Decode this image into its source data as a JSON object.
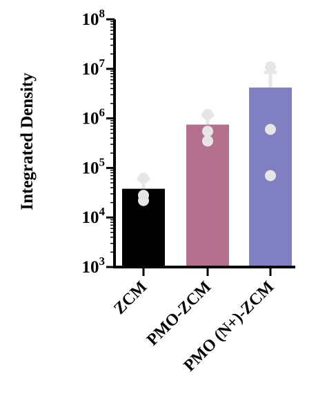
{
  "chart_data": {
    "type": "bar",
    "yscale": "log",
    "ylabel": "Integrated Density",
    "xlabel": "",
    "title": "",
    "ylim": [
      1000,
      100000000
    ],
    "y_ticks": [
      {
        "value": 1000,
        "base": "10",
        "exp": "3"
      },
      {
        "value": 10000,
        "base": "10",
        "exp": "4"
      },
      {
        "value": 100000,
        "base": "10",
        "exp": "5"
      },
      {
        "value": 1000000,
        "base": "10",
        "exp": "6"
      },
      {
        "value": 10000000,
        "base": "10",
        "exp": "7"
      },
      {
        "value": 100000000,
        "base": "10",
        "exp": "8"
      }
    ],
    "categories": [
      "ZCM",
      "PMO-ZCM",
      "PMO (N+)-ZCM"
    ],
    "values": [
      38000,
      750000,
      4200000
    ],
    "error_upper": [
      60000,
      1150000,
      8500000
    ],
    "points": [
      [
        62000,
        28000,
        22000
      ],
      [
        1200000,
        550000,
        350000
      ],
      [
        11000000,
        600000,
        70000
      ]
    ],
    "colors": [
      "#000000",
      "#b5708e",
      "#7f7fc1"
    ],
    "marker_color": "#e6e6e6",
    "grid": false,
    "legend": "none"
  }
}
